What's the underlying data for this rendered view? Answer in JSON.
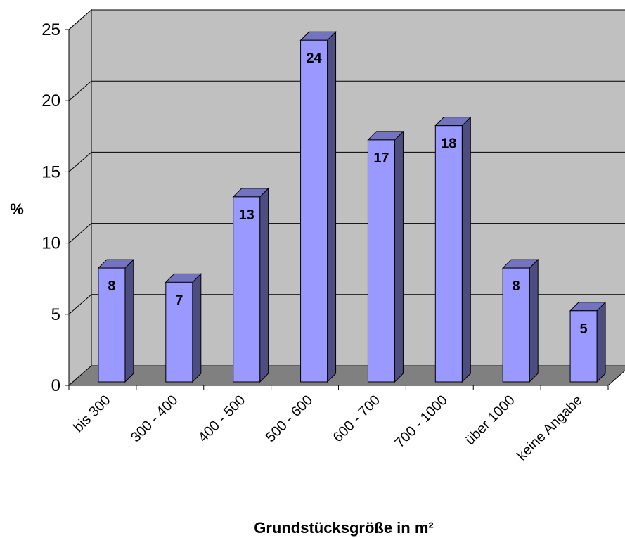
{
  "chart_data": {
    "type": "bar",
    "categories": [
      "bis 300",
      "300 - 400",
      "400 - 500",
      "500 - 600",
      "600 - 700",
      "700 - 1000",
      "über 1000",
      "keine Angabe"
    ],
    "values": [
      8,
      7,
      13,
      24,
      17,
      18,
      8,
      5
    ],
    "xlabel": "Grundstücksgröße in m²",
    "ylabel": "%",
    "ylim": [
      0,
      25
    ],
    "yticks": [
      0,
      5,
      10,
      15,
      20,
      25
    ],
    "grid": true,
    "style": "3d-column",
    "colors": {
      "bar_front": "#9999ff",
      "bar_side": "#4d4d80",
      "bar_top": "#7373c0",
      "wall": "#c0c0c0",
      "floor": "#808080"
    }
  }
}
